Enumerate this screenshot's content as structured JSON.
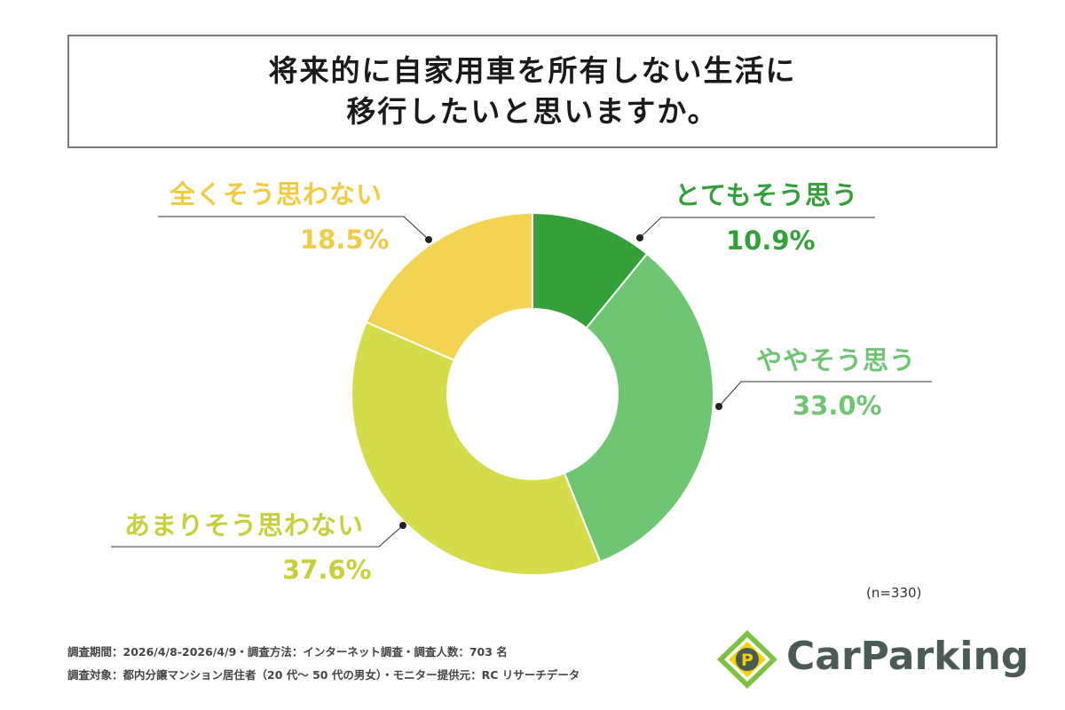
{
  "title": {
    "line1": "将来的に自家用車を所有しない生活に",
    "line2": "移行したいと思いますか。"
  },
  "chart_data": {
    "type": "pie",
    "donut": true,
    "slices": [
      {
        "label": "とてもそう思う",
        "value": 10.9,
        "value_text": "10.9%",
        "color": "#33a03a"
      },
      {
        "label": "ややそう思う",
        "value": 33.0,
        "value_text": "33.0%",
        "color": "#6fc672"
      },
      {
        "label": "あまりそう思わない",
        "value": 37.6,
        "value_text": "37.6%",
        "color": "#d4dc4a"
      },
      {
        "label": "全くそう思わない",
        "value": 18.5,
        "value_text": "18.5%",
        "color": "#f2d452"
      }
    ]
  },
  "sample_note": "(n=330)",
  "footnotes": {
    "line1": "調査期間：2026/4/8-2026/4/9・調査方法：インターネット調査・調査人数：703 名",
    "line2": "調査対象：都内分譲マンション居住者（20 代～ 50 代の男女）・モニター提供元：RC リサーチデータ"
  },
  "logo": {
    "mark_letter": "P",
    "text": "CarParking",
    "colors": {
      "green": "#7cc242",
      "yellow": "#f2d200",
      "dark": "#4a5a55"
    }
  }
}
